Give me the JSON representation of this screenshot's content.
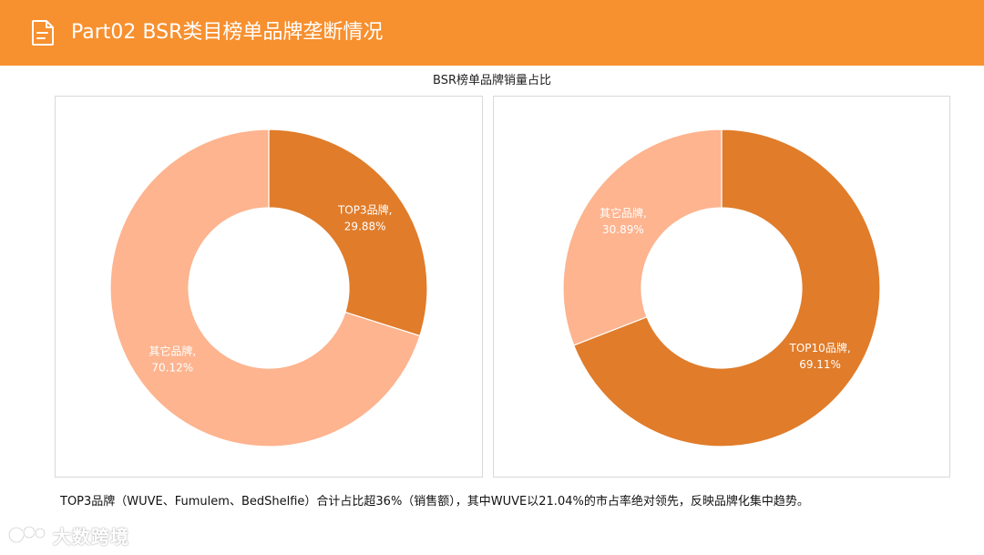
{
  "header": {
    "title": "Part02 BSR类目榜单品牌垄断情况",
    "icon": "document-icon",
    "background": "#f7902f"
  },
  "section_title": "BSR榜单品牌销量占比",
  "chart_data": [
    {
      "type": "pie",
      "donut": true,
      "title": "",
      "slices": [
        {
          "label": "TOP3品牌,",
          "pct_text": "29.88%",
          "value": 29.88,
          "color": "#e07c2a"
        },
        {
          "label": "其它品牌,",
          "pct_text": "70.12%",
          "value": 70.12,
          "color": "#fdb48f"
        }
      ]
    },
    {
      "type": "pie",
      "donut": true,
      "title": "",
      "slices": [
        {
          "label": "TOP10品牌,",
          "pct_text": "69.11%",
          "value": 69.11,
          "color": "#e07c2a"
        },
        {
          "label": "其它品牌,",
          "pct_text": "30.89%",
          "value": 30.89,
          "color": "#fdb48f"
        }
      ]
    }
  ],
  "summary": "TOP3品牌（WUVE、Fumulem、BedShelfie）合计占比超36%（销售额），其中WUVE以21.04%的市占率绝对领先，反映品牌化集中趋势。",
  "watermark": {
    "text": "大数跨境",
    "icon": "brand-logo-icon"
  }
}
